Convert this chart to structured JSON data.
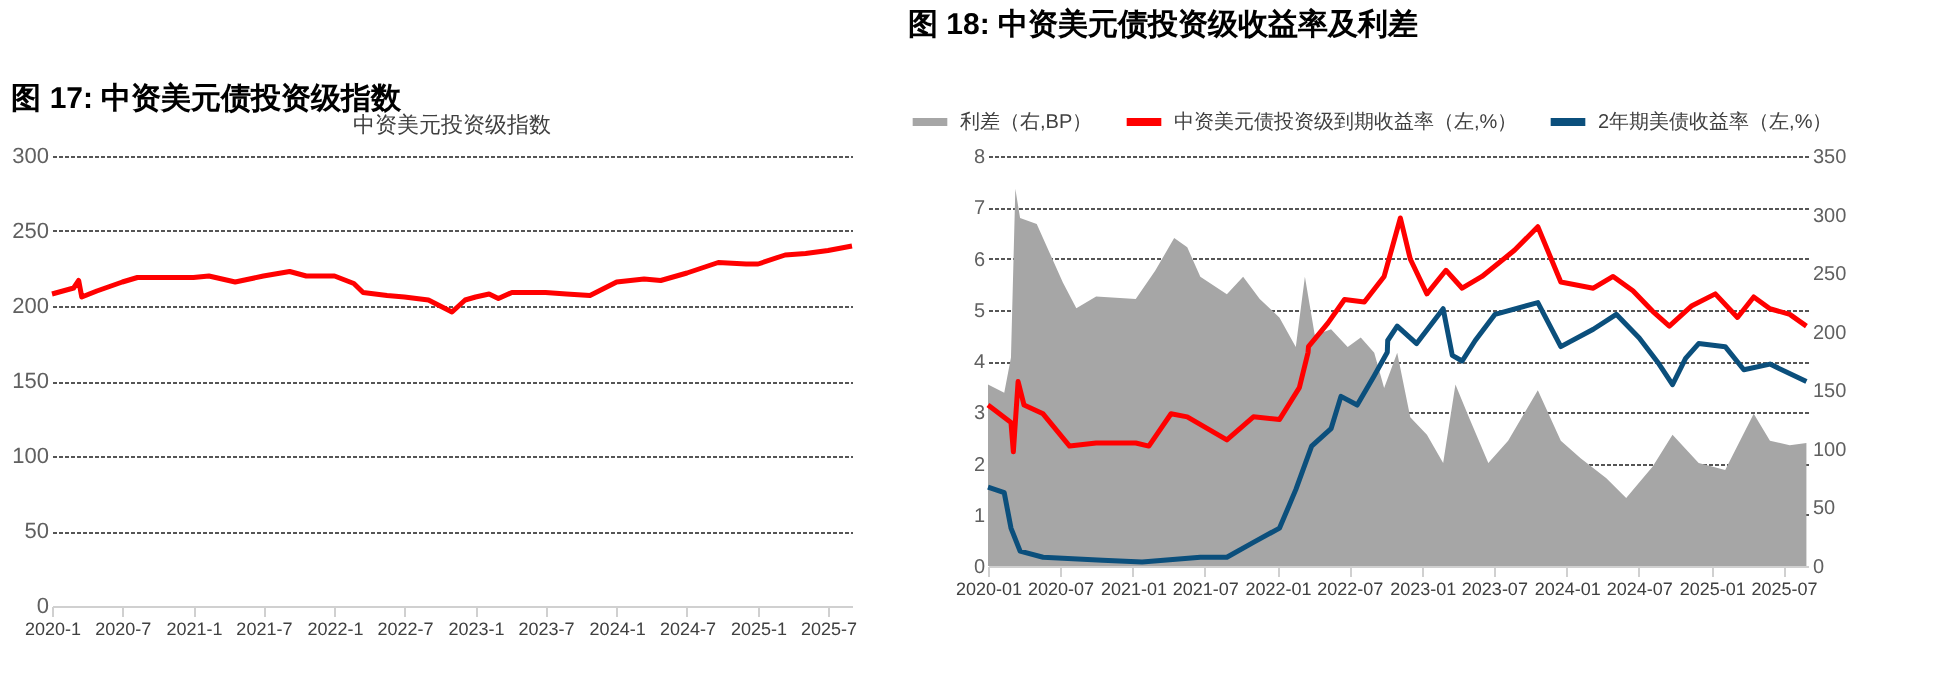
{
  "chart_data": [
    {
      "type": "line",
      "title": "图 17: 中资美元债投资级指数",
      "subtitle": "中资美元投资级指数",
      "legend": false,
      "grid": "y",
      "line_style": "solid",
      "marker": "none",
      "xlim": [
        "2020-01-01",
        "2025-09-01"
      ],
      "ylim": [
        0,
        300
      ],
      "yticks": [
        0,
        50,
        100,
        150,
        200,
        250,
        300
      ],
      "xticks": [
        {
          "value": "2020-01-01",
          "label": "2020-1"
        },
        {
          "value": "2020-07-01",
          "label": "2020-7"
        },
        {
          "value": "2021-01-01",
          "label": "2021-1"
        },
        {
          "value": "2021-07-01",
          "label": "2021-7"
        },
        {
          "value": "2022-01-01",
          "label": "2022-1"
        },
        {
          "value": "2022-07-01",
          "label": "2022-7"
        },
        {
          "value": "2023-01-01",
          "label": "2023-1"
        },
        {
          "value": "2023-07-01",
          "label": "2023-7"
        },
        {
          "value": "2024-01-01",
          "label": "2024-1"
        },
        {
          "value": "2024-07-01",
          "label": "2024-7"
        },
        {
          "value": "2025-01-01",
          "label": "2025-1"
        },
        {
          "value": "2025-07-01",
          "label": "2025-7"
        }
      ],
      "series": [
        {
          "color": "#ff0000",
          "x": [
            "2020-01-01",
            "2020-02-26",
            "2020-03-10",
            "2020-03-18",
            "2020-04-26",
            "2020-07-01",
            "2020-08-09",
            "2021-01-01",
            "2021-02-10",
            "2021-04-19",
            "2021-07-01",
            "2021-09-07",
            "2021-10-20",
            "2022-01-01",
            "2022-02-20",
            "2022-03-16",
            "2022-05-17",
            "2022-07-01",
            "2022-09-01",
            "2022-11-01",
            "2022-12-05",
            "2023-01-01",
            "2023-02-05",
            "2023-03-01",
            "2023-04-05",
            "2023-07-01",
            "2023-08-24",
            "2023-10-24",
            "2024-01-01",
            "2024-03-12",
            "2024-04-24",
            "2024-07-01",
            "2024-09-20",
            "2024-12-01",
            "2025-01-01",
            "2025-03-12",
            "2025-05-04",
            "2025-07-01",
            "2025-09-01"
          ],
          "values": [
            208,
            212,
            217,
            206,
            210,
            216,
            219,
            219,
            220,
            216,
            220,
            223,
            220,
            220,
            215,
            209,
            207,
            206,
            204,
            196,
            204,
            206,
            208,
            205,
            209,
            209,
            208,
            207,
            216,
            218,
            217,
            222,
            229,
            228,
            228,
            234,
            235,
            237,
            240
          ]
        }
      ]
    },
    {
      "type": "line",
      "title": "图 18: 中资美元债投资级收益率及利差",
      "legend": "top",
      "grid": "y",
      "line_style": "solid",
      "marker": "none",
      "xlim": [
        "2020-01-01",
        "2025-09-01"
      ],
      "ylim": [
        0,
        8
      ],
      "yticks": [
        0,
        1,
        2,
        3,
        4,
        5,
        6,
        7,
        8
      ],
      "y2lim": [
        0,
        350
      ],
      "y2ticks": [
        0,
        50,
        100,
        150,
        200,
        250,
        300,
        350
      ],
      "xticks": [
        "2020-01",
        "2020-07",
        "2021-01",
        "2021-07",
        "2022-01",
        "2022-07",
        "2023-01",
        "2023-07",
        "2024-01",
        "2024-07",
        "2025-01",
        "2025-07"
      ],
      "series": [
        {
          "name": "利差（右,BP）",
          "type": "area",
          "axis": "y2",
          "color": "#a6a6a6",
          "x": [
            "2020-01-01",
            "2020-02-11",
            "2020-02-28",
            "2020-03-10",
            "2020-03-22",
            "2020-05-03",
            "2020-06-05",
            "2020-07-08",
            "2020-08-11",
            "2020-09-30",
            "2021-01-08",
            "2021-02-26",
            "2021-04-15",
            "2021-05-18",
            "2021-06-20",
            "2021-08-26",
            "2021-10-06",
            "2021-11-17",
            "2022-01-06",
            "2022-02-16",
            "2022-03-11",
            "2022-04-05",
            "2022-05-16",
            "2022-06-27",
            "2022-07-30",
            "2022-09-02",
            "2022-09-27",
            "2022-10-30",
            "2022-12-02",
            "2023-01-13",
            "2023-02-23",
            "2023-03-26",
            "2023-04-29",
            "2023-06-17",
            "2023-08-06",
            "2023-10-20",
            "2023-12-17",
            "2024-02-05",
            "2024-04-10",
            "2024-05-30",
            "2024-08-05",
            "2024-09-24",
            "2024-11-29",
            "2025-02-04",
            "2025-04-17",
            "2025-05-28",
            "2025-07-17",
            "2025-08-28"
          ],
          "values": [
            155,
            148,
            178,
            322,
            297,
            292,
            267,
            242,
            220,
            230,
            228,
            252,
            280,
            272,
            247,
            232,
            247,
            228,
            212,
            187,
            247,
            197,
            202,
            187,
            195,
            182,
            152,
            182,
            127,
            112,
            88,
            155,
            127,
            88,
            107,
            150,
            107,
            92,
            75,
            58,
            85,
            112,
            88,
            82,
            130,
            107,
            103,
            105
          ]
        },
        {
          "name": "中资美元债投资级到期收益率（左,%）",
          "color": "#ff0000",
          "x": [
            "2020-01-01",
            "2020-02-28",
            "2020-03-05",
            "2020-03-17",
            "2020-04-01",
            "2020-05-19",
            "2020-07-25",
            "2020-09-30",
            "2021-01-08",
            "2021-02-10",
            "2021-04-07",
            "2021-05-18",
            "2021-08-26",
            "2021-11-01",
            "2022-01-06",
            "2022-02-25",
            "2022-03-19",
            "2022-03-20",
            "2022-05-08",
            "2022-06-19",
            "2022-08-08",
            "2022-09-27",
            "2022-11-07",
            "2022-12-02",
            "2023-01-13",
            "2023-03-02",
            "2023-04-12",
            "2023-06-01",
            "2023-08-22",
            "2023-10-20",
            "2023-12-17",
            "2024-03-08",
            "2024-04-27",
            "2024-06-16",
            "2024-08-05",
            "2024-09-16",
            "2024-11-12",
            "2025-01-10",
            "2025-03-07",
            "2025-04-17",
            "2025-05-28",
            "2025-07-17",
            "2025-08-28"
          ],
          "values": [
            3.14,
            2.8,
            2.23,
            3.6,
            3.14,
            2.97,
            2.34,
            2.4,
            2.4,
            2.34,
            2.97,
            2.91,
            2.46,
            2.91,
            2.86,
            3.48,
            4.17,
            4.28,
            4.74,
            5.2,
            5.15,
            5.65,
            6.79,
            5.99,
            5.31,
            5.77,
            5.42,
            5.65,
            6.16,
            6.62,
            5.54,
            5.42,
            5.65,
            5.37,
            4.97,
            4.68,
            5.08,
            5.31,
            4.85,
            5.25,
            5.02,
            4.91,
            4.68
          ]
        },
        {
          "name": "2年期美债收益率（左,%）",
          "color": "#0b4f7c",
          "x": [
            "2020-01-01",
            "2020-02-11",
            "2020-02-28",
            "2020-03-22",
            "2020-05-19",
            "2020-10-16",
            "2021-01-24",
            "2021-06-20",
            "2021-08-26",
            "2021-11-01",
            "2022-01-06",
            "2022-02-16",
            "2022-03-28",
            "2022-05-16",
            "2022-06-10",
            "2022-07-21",
            "2022-09-02",
            "2022-10-05",
            "2022-10-06",
            "2022-10-30",
            "2022-12-18",
            "2023-02-23",
            "2023-03-18",
            "2023-04-12",
            "2023-05-15",
            "2023-07-04",
            "2023-10-20",
            "2023-12-17",
            "2024-03-08",
            "2024-05-05",
            "2024-07-02",
            "2024-08-21",
            "2024-09-24",
            "2024-10-27",
            "2024-11-29",
            "2025-02-04",
            "2025-03-23",
            "2025-05-28",
            "2025-08-28"
          ],
          "values": [
            1.54,
            1.43,
            0.74,
            0.29,
            0.17,
            0.11,
            0.08,
            0.17,
            0.17,
            0.46,
            0.74,
            1.49,
            2.34,
            2.68,
            3.31,
            3.14,
            3.71,
            4.17,
            4.4,
            4.68,
            4.34,
            5.02,
            4.11,
            4.0,
            4.4,
            4.91,
            5.14,
            4.28,
            4.62,
            4.91,
            4.45,
            3.94,
            3.54,
            4.05,
            4.34,
            4.28,
            3.83,
            3.94,
            3.6
          ]
        }
      ]
    }
  ]
}
